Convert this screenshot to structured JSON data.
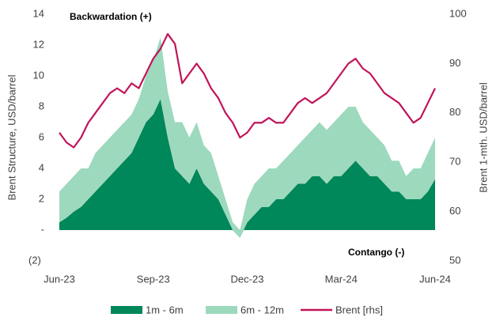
{
  "chart_data": {
    "type": "area-line",
    "annotations": [
      "Backwardation (+)",
      "Contango (-)"
    ],
    "ylabel": "Brent Structure, USD/barrel",
    "y2label": "Brent 1-mth. USD/barrel",
    "categories": [
      "Jun-23",
      null,
      null,
      null,
      null,
      null,
      null,
      null,
      null,
      null,
      null,
      null,
      null,
      "Sep-23",
      null,
      null,
      null,
      null,
      null,
      null,
      null,
      null,
      null,
      null,
      null,
      null,
      "Dec-23",
      null,
      null,
      null,
      null,
      null,
      null,
      null,
      null,
      null,
      null,
      null,
      null,
      "Mar-24",
      null,
      null,
      null,
      null,
      null,
      null,
      null,
      null,
      null,
      null,
      null,
      null,
      "Jun-24"
    ],
    "ylim": [
      -2,
      14
    ],
    "yticks": [
      {
        "value": -2,
        "label": "(2)"
      },
      {
        "value": 0,
        "label": "-"
      },
      2,
      4,
      6,
      8,
      10,
      12,
      14
    ],
    "y2lim": [
      50,
      100
    ],
    "y2ticks": [
      50,
      60,
      70,
      80,
      90,
      100
    ],
    "series": [
      {
        "name": "1m - 6m",
        "color": "#00875a",
        "stack": true,
        "values": [
          0.5,
          0.8,
          1.2,
          1.5,
          2.0,
          2.5,
          3.0,
          3.5,
          4.0,
          4.5,
          5.0,
          6.0,
          7.0,
          7.5,
          8.5,
          6.0,
          4.0,
          3.5,
          3.0,
          4.0,
          3.0,
          2.5,
          2.0,
          1.0,
          0.0,
          -0.5,
          0.5,
          1.0,
          1.5,
          1.5,
          2.0,
          2.0,
          2.5,
          3.0,
          3.0,
          3.5,
          3.5,
          3.0,
          3.5,
          3.5,
          4.0,
          4.5,
          4.0,
          3.5,
          3.5,
          3.0,
          2.5,
          2.5,
          2.0,
          2.0,
          2.0,
          2.5,
          3.3
        ]
      },
      {
        "name": "6m - 12m",
        "color": "#9dd9bd",
        "stack": true,
        "values": [
          2.0,
          2.2,
          2.3,
          2.5,
          2.0,
          2.5,
          2.5,
          2.5,
          2.5,
          2.5,
          2.5,
          2.5,
          3.0,
          3.5,
          4.0,
          3.0,
          3.0,
          3.5,
          3.0,
          3.0,
          2.5,
          2.5,
          1.5,
          1.0,
          0.5,
          0.5,
          1.5,
          2.0,
          2.0,
          2.5,
          2.0,
          2.5,
          2.5,
          2.5,
          3.0,
          3.0,
          3.5,
          3.5,
          3.5,
          4.0,
          4.0,
          3.5,
          3.0,
          3.0,
          2.5,
          2.5,
          2.0,
          2.0,
          1.5,
          2.0,
          2.0,
          2.5,
          2.7
        ]
      },
      {
        "name": "Brent [rhs]",
        "color": "#c0145a",
        "axis": "y2",
        "values": [
          76,
          74,
          73,
          75,
          78,
          80,
          82,
          84,
          85,
          84,
          86,
          85,
          88,
          91,
          93,
          96,
          94,
          86,
          88,
          90,
          88,
          85,
          83,
          80,
          78,
          75,
          76,
          78,
          78,
          79,
          78,
          78,
          80,
          82,
          83,
          82,
          83,
          84,
          86,
          88,
          90,
          91,
          89,
          88,
          86,
          84,
          83,
          82,
          80,
          78,
          79,
          82,
          85
        ]
      }
    ]
  }
}
